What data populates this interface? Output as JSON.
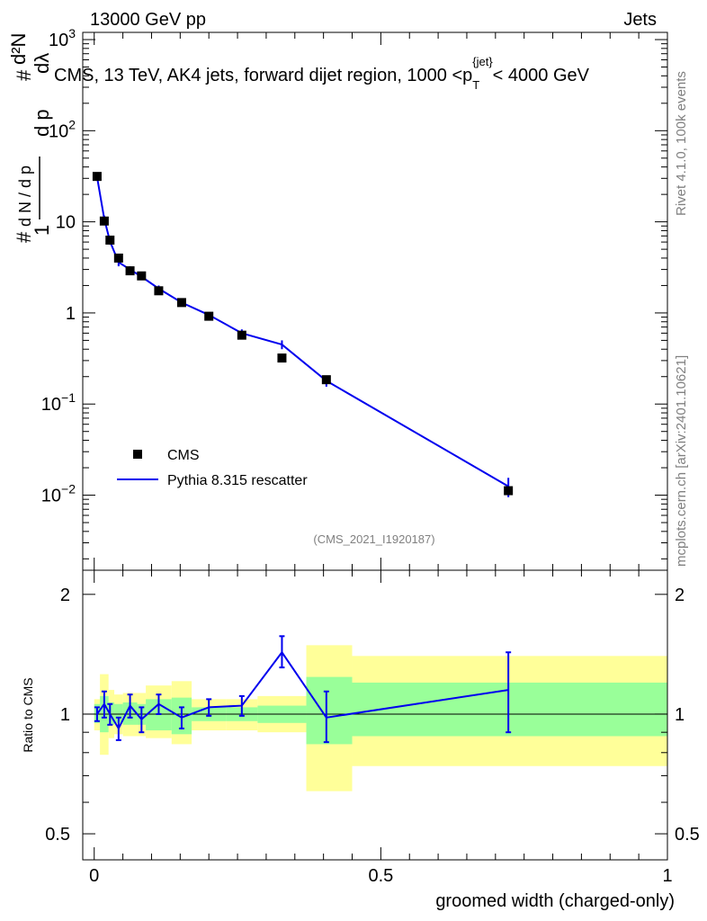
{
  "header": {
    "left": "13000 GeV pp",
    "right": "Jets"
  },
  "side": {
    "rivet": "Rivet 4.1.0,  100k events",
    "mcplots": "mcplots.cern.ch [arXiv:2401.10621]"
  },
  "colors": {
    "data": "#000000",
    "mc": "#0000ee",
    "band_inner": "#99ff99",
    "band_outer": "#ffff99"
  },
  "chart_data": [
    {
      "type": "scatter",
      "panel": "main",
      "title": "CMS, 13 TeV, AK4 jets, forward dijet region, 1000 <p_T^{jet}< 4000 GeV",
      "title_parts": {
        "main": "CMS, 13 TeV, AK4 jets, forward dijet region, 1000 <p",
        "sub": "T",
        "sup": "{jet}",
        "tail": "< 4000 GeV"
      },
      "ylabel": "1/dN/dp_T  d²N/dp_T dλ",
      "ylabel_parts": {
        "hash": "#",
        "one": "1",
        "den": "d N / d p",
        "num": "d²N",
        "num_hash": "#",
        "den2": "d p",
        "dlambda": "dλ",
        "sub": "T"
      },
      "yscale": "log",
      "ylim": [
        0.0015,
        1200
      ],
      "xlim": [
        -0.02,
        1.0
      ],
      "yticks": [
        {
          "v": 0.01,
          "base": "10",
          "exp": "−2"
        },
        {
          "v": 0.1,
          "base": "10",
          "exp": "−1"
        },
        {
          "v": 1,
          "base": "1",
          "exp": ""
        },
        {
          "v": 10,
          "base": "10",
          "exp": ""
        },
        {
          "v": 100,
          "base": "10",
          "exp": "2"
        },
        {
          "v": 1000,
          "base": "10",
          "exp": "3"
        }
      ],
      "watermark": "(CMS_2021_I1920187)",
      "legend_position": "lower-left",
      "series": [
        {
          "name": "CMS",
          "style": "markers",
          "x": [
            0.005,
            0.0175,
            0.0275,
            0.0425,
            0.0625,
            0.0825,
            0.1125,
            0.1525,
            0.2,
            0.2575,
            0.3275,
            0.405,
            0.7225
          ],
          "y": [
            31.5,
            10.2,
            6.3,
            4.0,
            2.9,
            2.55,
            1.75,
            1.3,
            0.92,
            0.57,
            0.32,
            0.185,
            0.0112
          ]
        },
        {
          "name": "Pythia 8.315 rescatter",
          "style": "line",
          "x": [
            0.005,
            0.0175,
            0.0275,
            0.0425,
            0.0625,
            0.0825,
            0.1125,
            0.1525,
            0.2,
            0.2575,
            0.3275,
            0.405,
            0.7225
          ],
          "y": [
            31.0,
            10.8,
            6.1,
            3.6,
            3.0,
            2.5,
            1.85,
            1.3,
            0.95,
            0.6,
            0.45,
            0.18,
            0.0125
          ],
          "err_low": [
            0,
            0.9,
            0.5,
            0.35,
            0.25,
            0.2,
            0.15,
            0.08,
            0.06,
            0.06,
            0.05,
            0.025,
            0.003
          ],
          "err_high": [
            0,
            0.9,
            0.5,
            0.35,
            0.25,
            0.2,
            0.15,
            0.08,
            0.06,
            0.06,
            0.05,
            0.025,
            0.003
          ]
        }
      ]
    },
    {
      "type": "line",
      "panel": "ratio",
      "ylabel": "Ratio to CMS",
      "xlabel": "groomed width (charged-only)",
      "yscale": "log",
      "ylim": [
        0.43,
        2.3
      ],
      "xlim": [
        -0.02,
        1.0
      ],
      "xticks": [
        {
          "v": 0,
          "label": "0"
        },
        {
          "v": 0.5,
          "label": "0.5"
        },
        {
          "v": 1,
          "label": "1"
        }
      ],
      "yticks": [
        {
          "v": 0.5,
          "label": "0.5"
        },
        {
          "v": 1,
          "label": "1"
        },
        {
          "v": 2,
          "label": "2"
        }
      ],
      "bins": [
        {
          "lo": 0.0,
          "hi": 0.01,
          "in_lo": 0.95,
          "in_hi": 1.06,
          "out_lo": 0.91,
          "out_hi": 1.09
        },
        {
          "lo": 0.01,
          "hi": 0.025,
          "in_lo": 0.9,
          "in_hi": 1.11,
          "out_lo": 0.79,
          "out_hi": 1.26
        },
        {
          "lo": 0.025,
          "hi": 0.035,
          "in_lo": 0.94,
          "in_hi": 1.07,
          "out_lo": 0.87,
          "out_hi": 1.15
        },
        {
          "lo": 0.035,
          "hi": 0.05,
          "in_lo": 0.95,
          "in_hi": 1.06,
          "out_lo": 0.89,
          "out_hi": 1.12
        },
        {
          "lo": 0.05,
          "hi": 0.075,
          "in_lo": 0.94,
          "in_hi": 1.07,
          "out_lo": 0.88,
          "out_hi": 1.13
        },
        {
          "lo": 0.075,
          "hi": 0.09,
          "in_lo": 0.94,
          "in_hi": 1.06,
          "out_lo": 0.88,
          "out_hi": 1.13
        },
        {
          "lo": 0.09,
          "hi": 0.135,
          "in_lo": 0.91,
          "in_hi": 1.09,
          "out_lo": 0.87,
          "out_hi": 1.18
        },
        {
          "lo": 0.135,
          "hi": 0.17,
          "in_lo": 0.89,
          "in_hi": 1.1,
          "out_lo": 0.84,
          "out_hi": 1.21
        },
        {
          "lo": 0.17,
          "hi": 0.23,
          "in_lo": 0.96,
          "in_hi": 1.04,
          "out_lo": 0.91,
          "out_hi": 1.09
        },
        {
          "lo": 0.23,
          "hi": 0.285,
          "in_lo": 0.96,
          "in_hi": 1.04,
          "out_lo": 0.91,
          "out_hi": 1.09
        },
        {
          "lo": 0.285,
          "hi": 0.37,
          "in_lo": 0.95,
          "in_hi": 1.05,
          "out_lo": 0.9,
          "out_hi": 1.11
        },
        {
          "lo": 0.37,
          "hi": 0.45,
          "in_lo": 0.84,
          "in_hi": 1.24,
          "out_lo": 0.64,
          "out_hi": 1.49
        },
        {
          "lo": 0.45,
          "hi": 1.0,
          "in_lo": 0.88,
          "in_hi": 1.2,
          "out_lo": 0.74,
          "out_hi": 1.4
        }
      ],
      "series": [
        {
          "name": "Pythia 8.315 rescatter / CMS",
          "x": [
            0.005,
            0.0175,
            0.0275,
            0.0425,
            0.0625,
            0.0825,
            0.1125,
            0.1525,
            0.2,
            0.2575,
            0.3275,
            0.405,
            0.7225
          ],
          "y": [
            1.0,
            1.06,
            1.0,
            0.92,
            1.05,
            0.97,
            1.06,
            0.98,
            1.04,
            1.05,
            1.43,
            0.98,
            1.15
          ],
          "err_low": [
            0.04,
            0.08,
            0.06,
            0.06,
            0.07,
            0.07,
            0.06,
            0.06,
            0.05,
            0.06,
            0.12,
            0.13,
            0.25
          ],
          "err_high": [
            0.04,
            0.08,
            0.06,
            0.06,
            0.07,
            0.07,
            0.06,
            0.06,
            0.05,
            0.06,
            0.14,
            0.16,
            0.28
          ]
        }
      ]
    }
  ]
}
